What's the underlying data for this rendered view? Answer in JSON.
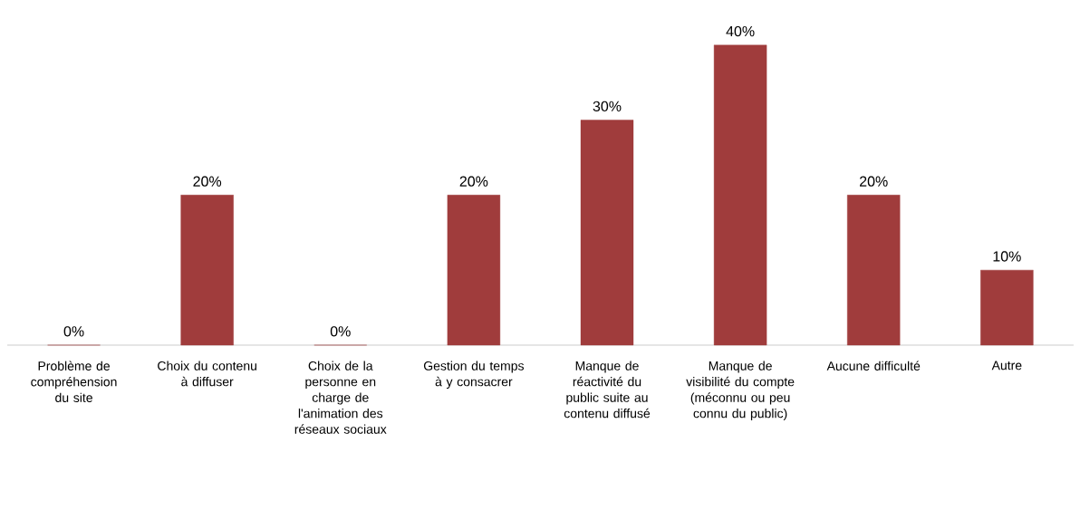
{
  "chart_data": {
    "type": "bar",
    "categories": [
      "Problème de compréhension du site",
      "Choix du contenu à diffuser",
      "Choix de la personne en charge de l'animation des réseaux sociaux",
      "Gestion du temps à y consacrer",
      "Manque de réactivité du public suite au contenu diffusé",
      "Manque de visibilité du compte (méconnu ou peu connu du public)",
      "Aucune difficulté",
      "Autre"
    ],
    "values": [
      0,
      20,
      0,
      20,
      30,
      40,
      20,
      10
    ],
    "value_labels": [
      "0%",
      "20%",
      "0%",
      "20%",
      "30%",
      "40%",
      "20%",
      "10%"
    ],
    "color": "#a03c3c"
  }
}
